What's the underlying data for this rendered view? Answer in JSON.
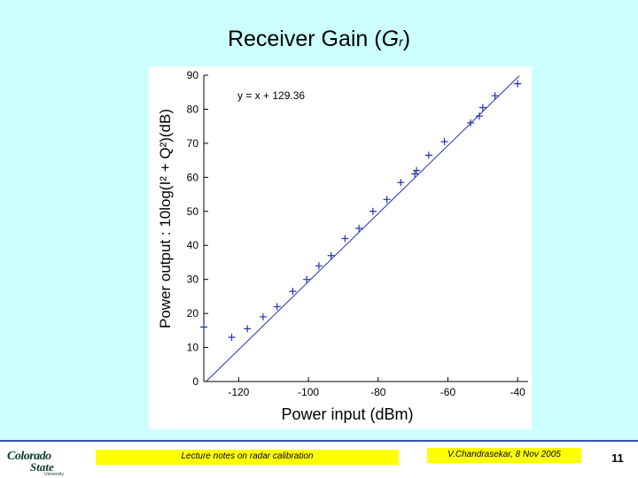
{
  "slide": {
    "title_prefix": "Receiver Gain (",
    "title_symbol": "G",
    "title_subscript": "r",
    "title_suffix": ")"
  },
  "footer": {
    "logo_line1": "Colorado",
    "logo_line2": "State",
    "logo_line3": "University",
    "notes": "Lecture notes on radar calibration",
    "author": "V.Chandrasekar, 8 Nov 2005",
    "page": "11"
  },
  "colors": {
    "background": "#ccffff",
    "series": "#2233aa",
    "highlight_box": "#ffff00"
  },
  "chart_data": {
    "type": "scatter",
    "title": "",
    "xlabel": "Power input (dBm)",
    "ylabel": "Power output : 10log(I² + Q²)(dB)",
    "xlim": [
      -130,
      -37
    ],
    "ylim": [
      0,
      90
    ],
    "xticks": [
      -120,
      -100,
      -80,
      -60,
      -40
    ],
    "yticks": [
      0,
      10,
      20,
      30,
      40,
      50,
      60,
      70,
      80,
      90
    ],
    "grid": false,
    "annotation": "y = x + 129.36",
    "fit_line": {
      "slope": 1,
      "intercept": 129.36,
      "x_range": [
        -129.36,
        -39.5
      ]
    },
    "series": [
      {
        "points": [
          [
            -130,
            16
          ],
          [
            -122,
            13
          ],
          [
            -117.5,
            15.5
          ],
          [
            -113,
            19
          ],
          [
            -109,
            22
          ],
          [
            -104.5,
            26.5
          ],
          [
            -100.5,
            30
          ],
          [
            -97,
            34
          ],
          [
            -93.5,
            37
          ],
          [
            -89.5,
            42
          ],
          [
            -85.5,
            45
          ],
          [
            -81.5,
            50
          ],
          [
            -77.5,
            53.5
          ],
          [
            -73.5,
            58.5
          ],
          [
            -69.5,
            61
          ],
          [
            -69,
            62
          ],
          [
            -65.5,
            66.5
          ],
          [
            -61,
            70.5
          ],
          [
            -53.5,
            76
          ],
          [
            -51,
            78
          ],
          [
            -50,
            80.5
          ],
          [
            -46.5,
            84
          ],
          [
            -40,
            87.5
          ]
        ]
      }
    ]
  }
}
